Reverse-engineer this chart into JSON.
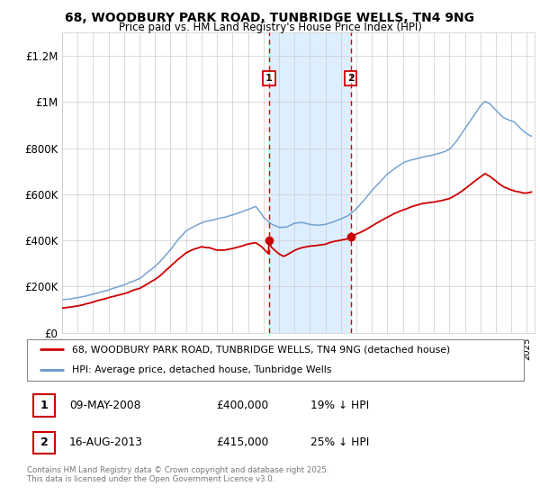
{
  "title": "68, WOODBURY PARK ROAD, TUNBRIDGE WELLS, TN4 9NG",
  "subtitle": "Price paid vs. HM Land Registry's House Price Index (HPI)",
  "ylim": [
    0,
    1300000
  ],
  "yticks": [
    0,
    200000,
    400000,
    600000,
    800000,
    1000000,
    1200000
  ],
  "ytick_labels": [
    "£0",
    "£200K",
    "£400K",
    "£600K",
    "£800K",
    "£1M",
    "£1.2M"
  ],
  "xmin": 1995.0,
  "xmax": 2025.5,
  "transaction1": {
    "date": "09-MAY-2008",
    "price": 400000,
    "label": "1",
    "year": 2008.35,
    "hpi_pct": "19% ↓ HPI"
  },
  "transaction2": {
    "date": "16-AUG-2013",
    "price": 415000,
    "label": "2",
    "year": 2013.62,
    "hpi_pct": "25% ↓ HPI"
  },
  "legend_line1": "68, WOODBURY PARK ROAD, TUNBRIDGE WELLS, TN4 9NG (detached house)",
  "legend_line2": "HPI: Average price, detached house, Tunbridge Wells",
  "footer": "Contains HM Land Registry data © Crown copyright and database right 2025.\nThis data is licensed under the Open Government Licence v3.0.",
  "red_color": "#cc0000",
  "blue_color": "#6699cc",
  "shade_color": "#ddeeff",
  "background_color": "#ffffff",
  "grid_color": "#cccccc"
}
